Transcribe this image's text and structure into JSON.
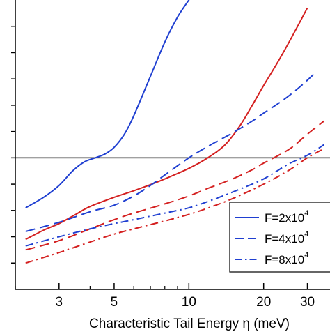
{
  "chart_data": {
    "type": "line",
    "xlabel": "Characteristic Tail Energy η (meV)",
    "x_scale": "log",
    "xlim": [
      2,
      37
    ],
    "ylim": [
      0,
      11
    ],
    "x_ticks": [
      3,
      5,
      10,
      20,
      30
    ],
    "y_ticks": [
      1,
      2,
      3,
      4,
      5,
      6,
      7,
      8,
      9,
      10
    ],
    "hline": 5,
    "grid": false,
    "legend": {
      "placement": "bottom-right",
      "entries": [
        {
          "base": "F=2x10",
          "exp": "4",
          "color": "#1f3fd1",
          "style": "solid"
        },
        {
          "base": "F=4x10",
          "exp": "4",
          "color": "#1f3fd1",
          "style": "dashed"
        },
        {
          "base": "F=8x10",
          "exp": "4",
          "color": "#1f3fd1",
          "style": "dashdot"
        }
      ]
    },
    "series": [
      {
        "color": "#1f3fd1",
        "style": "solid",
        "x": [
          2.2,
          2.6,
          3.0,
          3.4,
          3.8,
          4.2,
          4.6,
          5.0,
          5.5,
          6.0,
          7.0,
          8.0,
          9.0,
          10.0,
          10.5
        ],
        "y": [
          3.1,
          3.5,
          3.95,
          4.5,
          4.85,
          5.0,
          5.15,
          5.4,
          5.9,
          6.6,
          8.1,
          9.4,
          10.35,
          11.0,
          11.3
        ]
      },
      {
        "color": "#d42020",
        "style": "solid",
        "x": [
          2.2,
          2.6,
          3.0,
          3.5,
          4.0,
          5.0,
          6.0,
          7.0,
          8.0,
          10.0,
          12.0,
          14.0,
          16.0,
          18.0,
          20.0,
          23.0,
          26.0,
          30.0
        ],
        "y": [
          1.9,
          2.25,
          2.5,
          2.85,
          3.15,
          3.5,
          3.75,
          3.98,
          4.2,
          4.6,
          5.02,
          5.5,
          6.2,
          7.0,
          7.75,
          8.7,
          9.6,
          10.7
        ]
      },
      {
        "color": "#1f3fd1",
        "style": "dashed",
        "x": [
          2.2,
          3.0,
          4.0,
          5.0,
          6.0,
          7.0,
          8.0,
          10.0,
          12.0,
          15.0,
          18.0,
          20.0,
          24.0,
          28.0,
          32.0
        ],
        "y": [
          2.2,
          2.55,
          2.95,
          3.2,
          3.55,
          3.95,
          4.35,
          5.0,
          5.45,
          5.95,
          6.4,
          6.7,
          7.2,
          7.7,
          8.2
        ]
      },
      {
        "color": "#d42020",
        "style": "dashed",
        "x": [
          2.2,
          3.0,
          4.0,
          5.0,
          6.0,
          8.0,
          10.0,
          12.0,
          15.0,
          18.0,
          20.0,
          23.0,
          26.0,
          30.0,
          35.0
        ],
        "y": [
          1.5,
          1.85,
          2.3,
          2.65,
          2.9,
          3.25,
          3.55,
          3.85,
          4.2,
          4.55,
          4.8,
          5.1,
          5.4,
          5.9,
          6.4
        ]
      },
      {
        "color": "#1f3fd1",
        "style": "dashdot",
        "x": [
          2.2,
          3.0,
          4.0,
          5.0,
          6.0,
          8.0,
          10.0,
          12.0,
          15.0,
          20.0,
          25.0,
          30.0,
          35.0
        ],
        "y": [
          1.65,
          2.0,
          2.3,
          2.5,
          2.65,
          2.9,
          3.1,
          3.35,
          3.7,
          4.2,
          4.75,
          5.1,
          5.5
        ]
      },
      {
        "color": "#d42020",
        "style": "dashdot",
        "x": [
          2.2,
          3.0,
          4.0,
          5.0,
          6.0,
          8.0,
          10.0,
          12.0,
          15.0,
          20.0,
          25.0,
          30.0,
          35.0
        ],
        "y": [
          1.0,
          1.4,
          1.8,
          2.1,
          2.3,
          2.6,
          2.85,
          3.1,
          3.45,
          4.0,
          4.5,
          5.0,
          5.35
        ]
      }
    ]
  }
}
